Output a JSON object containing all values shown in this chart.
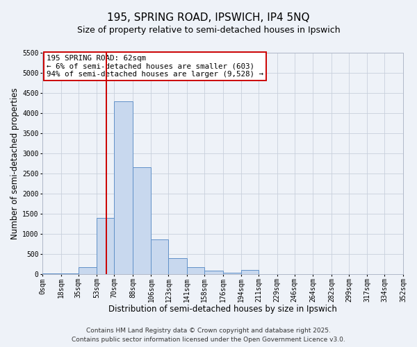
{
  "title": "195, SPRING ROAD, IPSWICH, IP4 5NQ",
  "subtitle": "Size of property relative to semi-detached houses in Ipswich",
  "xlabel": "Distribution of semi-detached houses by size in Ipswich",
  "ylabel": "Number of semi-detached properties",
  "bin_edges": [
    0,
    18,
    35,
    53,
    70,
    88,
    106,
    123,
    141,
    158,
    176,
    194,
    211,
    229,
    246,
    264,
    282,
    299,
    317,
    334,
    352
  ],
  "bin_counts": [
    5,
    15,
    170,
    1390,
    4300,
    2650,
    860,
    390,
    160,
    70,
    25,
    100,
    0,
    0,
    0,
    0,
    0,
    0,
    0,
    0
  ],
  "bar_color": "#c8d8ee",
  "bar_edge_color": "#6090c8",
  "grid_color": "#c8d0dc",
  "bg_color": "#eef2f8",
  "property_line_x": 62,
  "property_line_color": "#cc0000",
  "annotation_text": "195 SPRING ROAD: 62sqm\n← 6% of semi-detached houses are smaller (603)\n94% of semi-detached houses are larger (9,528) →",
  "annotation_box_color": "#cc0000",
  "ylim": [
    0,
    5500
  ],
  "tick_labels": [
    "0sqm",
    "18sqm",
    "35sqm",
    "53sqm",
    "70sqm",
    "88sqm",
    "106sqm",
    "123sqm",
    "141sqm",
    "158sqm",
    "176sqm",
    "194sqm",
    "211sqm",
    "229sqm",
    "246sqm",
    "264sqm",
    "282sqm",
    "299sqm",
    "317sqm",
    "334sqm",
    "352sqm"
  ],
  "yticks": [
    0,
    500,
    1000,
    1500,
    2000,
    2500,
    3000,
    3500,
    4000,
    4500,
    5000,
    5500
  ],
  "footer1": "Contains HM Land Registry data © Crown copyright and database right 2025.",
  "footer2": "Contains public sector information licensed under the Open Government Licence v3.0.",
  "title_fontsize": 11,
  "subtitle_fontsize": 9,
  "axis_label_fontsize": 8.5,
  "tick_fontsize": 7,
  "annot_fontsize": 7.8,
  "footer_fontsize": 6.5
}
